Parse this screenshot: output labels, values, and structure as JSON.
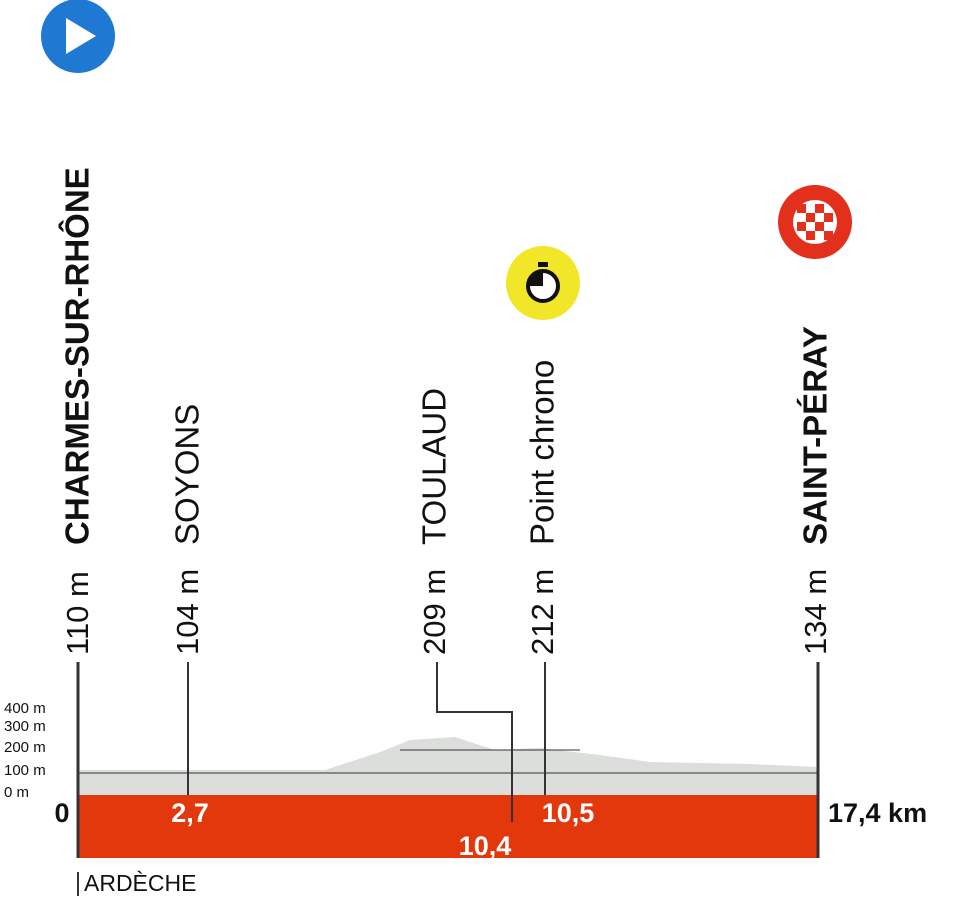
{
  "start": {
    "name": "CHARMES-SUR-RHÔNE",
    "altitude": "110 m",
    "km": "0"
  },
  "points": [
    {
      "name": "SOYONS",
      "altitude": "104 m",
      "km": "2,7"
    },
    {
      "name": "TOULAUD",
      "altitude": "209 m",
      "km": "10,4"
    },
    {
      "name": "Point chrono",
      "altitude": "212 m",
      "km": "10,5"
    }
  ],
  "finish": {
    "name": "SAINT-PÉRAY",
    "altitude": "134 m",
    "km": "17,4 km"
  },
  "altitude_axis": [
    "400 m",
    "300 m",
    "200 m",
    "100 m",
    "0 m"
  ],
  "region": "ARDÈCHE"
}
